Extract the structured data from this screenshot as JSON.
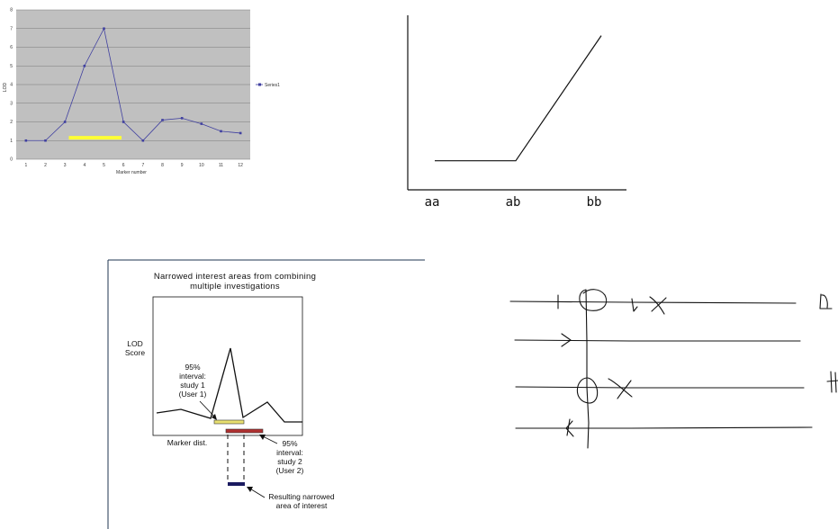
{
  "chart_data": [
    {
      "type": "line",
      "title": "",
      "xlabel": "Marker number",
      "ylabel": "LOD",
      "categories": [
        "1",
        "2",
        "3",
        "4",
        "5",
        "6",
        "7",
        "8",
        "9",
        "10",
        "11",
        "12"
      ],
      "yticks": [
        "0",
        "1",
        "2",
        "3",
        "4",
        "5",
        "6",
        "7",
        "8"
      ],
      "ylim": [
        0,
        8
      ],
      "series": [
        {
          "name": "Series1",
          "values": [
            1,
            1,
            2,
            5,
            7,
            2,
            1,
            2.1,
            2.2,
            1.9,
            1.5,
            1.4
          ]
        }
      ],
      "highlight_interval": {
        "x": [
          3.2,
          5.9
        ],
        "y": 1.15
      },
      "legend": "right",
      "grid": true,
      "background": "#c0c0c0",
      "line_color": "#4040a0",
      "highlight_color": "#ffff33"
    },
    {
      "type": "line",
      "title": "",
      "categories": [
        "aa",
        "ab",
        "bb"
      ],
      "series": [
        {
          "values": [
            1,
            1,
            5.3
          ]
        }
      ],
      "ylim": [
        0,
        6
      ]
    }
  ],
  "lod_schematic": {
    "title_line1": "Narrowed interest areas from combining",
    "title_line2": "multiple investigations",
    "ylabel_line1": "LOD",
    "ylabel_line2": "Score",
    "xlabel": "Marker dist.",
    "annot1": [
      "95%",
      "interval:",
      "study 1",
      "(User 1)"
    ],
    "annot2": [
      "95%",
      "interval:",
      "study 2",
      "(User 2)"
    ],
    "annot3": [
      "Resulting narrowed",
      "area of interest"
    ],
    "colors": {
      "study1": "#e8e070",
      "study2": "#b03030",
      "result": "#1a1a60"
    }
  }
}
